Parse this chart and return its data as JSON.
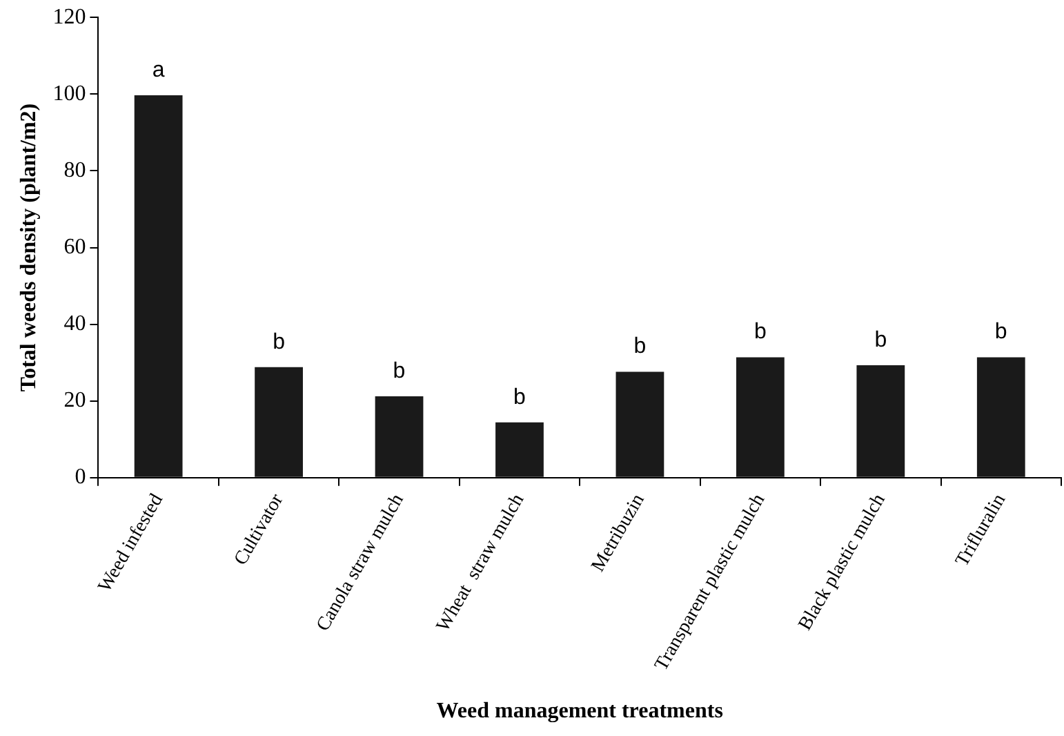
{
  "chart_data": {
    "type": "bar",
    "xlabel": "Weed management treatments",
    "ylabel": "Total weeds density (plant/m2)",
    "categories": [
      "Weed infested",
      "Cultivator",
      "Canola straw mulch",
      "Wheat  straw mulch",
      "Metribuzin",
      "Transparent plastic mulch",
      "Black plastic mulch",
      "Trifluralin"
    ],
    "values": [
      99.7,
      28.8,
      21.2,
      14.4,
      27.6,
      31.4,
      29.3,
      31.4
    ],
    "color": "#1a1a1a",
    "ylim": [
      0,
      120
    ],
    "yticks": [
      0,
      20,
      40,
      60,
      80,
      100,
      120
    ],
    "grid": false,
    "legend": false,
    "annotations": [
      {
        "text": "a",
        "x": "Weed infested",
        "y": 99.7
      },
      {
        "text": "b",
        "x": "Cultivator",
        "y": 28.8
      },
      {
        "text": "b",
        "x": "Canola straw mulch",
        "y": 21.2
      },
      {
        "text": "b",
        "x": "Wheat  straw mulch",
        "y": 14.4
      },
      {
        "text": "b",
        "x": "Metribuzin",
        "y": 27.6
      },
      {
        "text": "b",
        "x": "Transparent plastic mulch",
        "y": 31.4
      },
      {
        "text": "b",
        "x": "Black plastic mulch",
        "y": 29.3
      },
      {
        "text": "b",
        "x": "Trifluralin",
        "y": 31.4
      }
    ]
  }
}
